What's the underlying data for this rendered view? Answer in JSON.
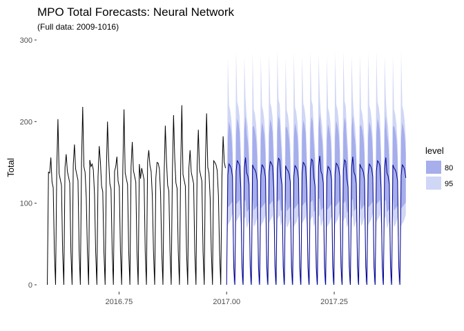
{
  "chart_data": {
    "type": "line",
    "title": "MPO Total Forecasts: Neural Network",
    "subtitle": "(Full data: 2009-1016)",
    "xlabel": "",
    "ylabel": "Total",
    "xlim": [
      2016.56,
      2017.42
    ],
    "ylim": [
      0,
      300
    ],
    "x_ticks": [
      2016.75,
      2017.0,
      2017.25
    ],
    "x_tick_labels": [
      "2016.75",
      "2017.00",
      "2017.25"
    ],
    "y_ticks": [
      0,
      100,
      200,
      300
    ],
    "y_tick_labels": [
      "0",
      "100",
      "200",
      "300"
    ],
    "grid": false,
    "legend": {
      "title": "level",
      "placement": "right",
      "entries": [
        {
          "label": "80",
          "color": "#a6aeec"
        },
        {
          "label": "95",
          "color": "#d0d6f5"
        }
      ]
    },
    "colors": {
      "history": "#000000",
      "forecast": "#00008b",
      "band80": "#a6aeec",
      "band95": "#d0d6f5"
    },
    "history": {
      "x_start": 2016.5833,
      "x_end": 2016.9973,
      "weekly_pattern": [
        0,
        142,
        150,
        146,
        132,
        118,
        40
      ],
      "peaks": [
        137,
        203,
        160,
        172,
        218,
        145,
        170,
        200,
        145,
        215,
        175,
        130,
        165,
        150,
        195,
        208,
        220,
        165,
        190,
        210,
        150,
        182
      ]
    },
    "forecast": {
      "x_start": 2017.0,
      "x_end": 2017.4164,
      "weekly_pattern": [
        0,
        140,
        150,
        145,
        138,
        125,
        22
      ],
      "band80_offsets": [
        12,
        40,
        52,
        48,
        42,
        30,
        18
      ],
      "band95_offsets": [
        22,
        62,
        72,
        68,
        60,
        45,
        30
      ],
      "spike_tops": [
        278,
        286,
        280,
        284,
        280,
        282,
        286,
        278,
        284,
        280,
        286,
        282,
        280,
        284,
        286,
        280,
        282,
        284,
        286,
        280,
        280,
        284,
        286,
        282,
        280,
        288,
        284,
        286,
        280,
        282
      ]
    }
  }
}
